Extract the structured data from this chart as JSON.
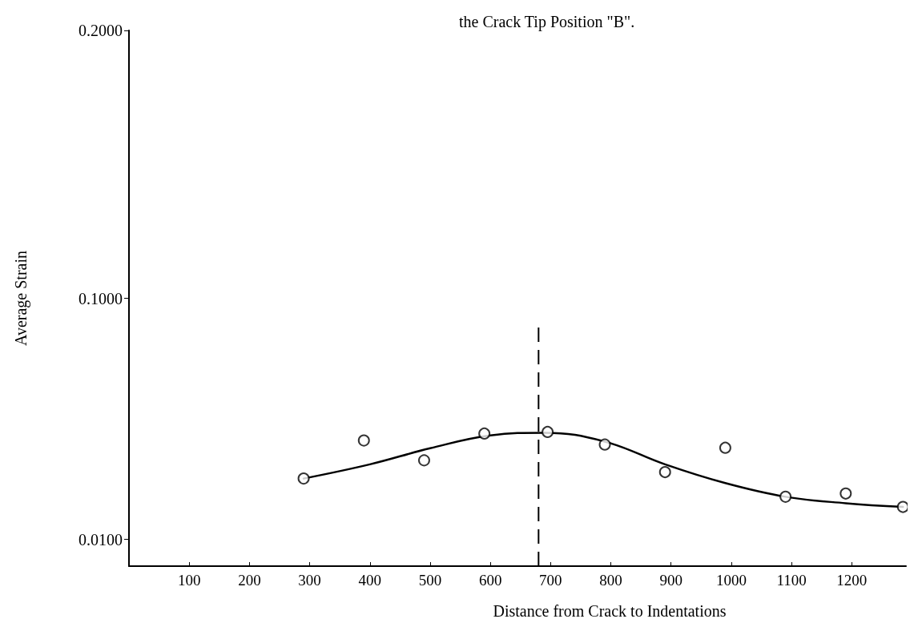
{
  "chart_data": {
    "type": "scatter",
    "title": "the Crack Tip Position \"B\".",
    "xlabel": "Distance from Crack to Indentations",
    "ylabel": "Average Strain",
    "xlim": [
      0,
      1290
    ],
    "xticks": [
      100,
      200,
      300,
      400,
      500,
      600,
      700,
      800,
      900,
      1000,
      1100,
      1200
    ],
    "ylim": [
      0,
      0.2
    ],
    "yticks": [
      {
        "value": 0.01,
        "label": "0.0100"
      },
      {
        "value": 0.1,
        "label": "0.1000"
      },
      {
        "value": 0.2,
        "label": "0.2000"
      }
    ],
    "marker": "circle",
    "grid": false,
    "series": [
      {
        "color": "#000000",
        "x": [
          290,
          390,
          490,
          590,
          695,
          790,
          890,
          990,
          1090,
          1190,
          1285
        ],
        "values": [
          0.0327,
          0.0469,
          0.0395,
          0.0495,
          0.0501,
          0.0454,
          0.0351,
          0.0442,
          0.0259,
          0.0271,
          0.0221
        ]
      },
      {
        "type": "line",
        "color": "#000000",
        "marker": "none",
        "x": [
          290,
          400,
          500,
          600,
          690,
          790,
          890,
          990,
          1090,
          1190,
          1285
        ],
        "values": [
          0.0327,
          0.038,
          0.044,
          0.0488,
          0.0498,
          0.0465,
          0.038,
          0.031,
          0.0259,
          0.0235,
          0.0221
        ]
      }
    ],
    "ref_lines": [
      {
        "axis": "x",
        "value": 680,
        "color": "#000000",
        "line_style": "dashed"
      }
    ]
  }
}
